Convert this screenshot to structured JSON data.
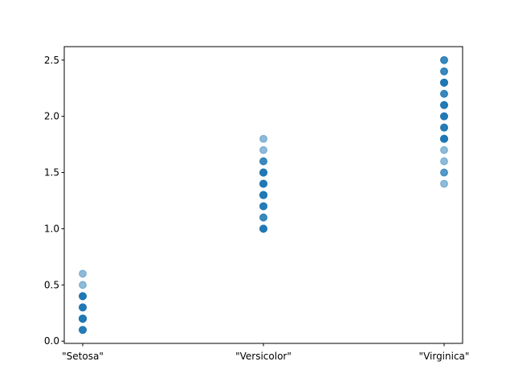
{
  "chart_data": {
    "type": "scatter",
    "title": "",
    "xlabel": "",
    "ylabel": "",
    "categories": [
      "\"Setosa\"",
      "\"Versicolor\"",
      "\"Virginica\""
    ],
    "ylim": [
      -0.02,
      2.62
    ],
    "y_ticks": [
      "0.0",
      "0.5",
      "1.0",
      "1.5",
      "2.0",
      "2.5"
    ],
    "marker_color": "#1f77b4",
    "marker_alpha": 0.5,
    "grid": false,
    "legend": "none",
    "points": [
      {
        "category": "\"Setosa\"",
        "values": [
          0.2,
          0.2,
          0.2,
          0.2,
          0.2,
          0.4,
          0.3,
          0.2,
          0.2,
          0.1,
          0.2,
          0.2,
          0.1,
          0.1,
          0.2,
          0.4,
          0.4,
          0.3,
          0.3,
          0.3,
          0.2,
          0.4,
          0.2,
          0.5,
          0.2,
          0.2,
          0.4,
          0.2,
          0.2,
          0.2,
          0.2,
          0.4,
          0.1,
          0.2,
          0.2,
          0.2,
          0.2,
          0.1,
          0.2,
          0.2,
          0.3,
          0.3,
          0.2,
          0.6,
          0.4,
          0.3,
          0.2,
          0.2,
          0.2,
          0.2
        ]
      },
      {
        "category": "\"Versicolor\"",
        "values": [
          1.4,
          1.5,
          1.5,
          1.3,
          1.5,
          1.3,
          1.6,
          1.0,
          1.3,
          1.4,
          1.0,
          1.5,
          1.0,
          1.4,
          1.3,
          1.4,
          1.5,
          1.0,
          1.5,
          1.1,
          1.8,
          1.3,
          1.5,
          1.2,
          1.3,
          1.4,
          1.4,
          1.7,
          1.5,
          1.0,
          1.1,
          1.0,
          1.2,
          1.6,
          1.5,
          1.6,
          1.5,
          1.3,
          1.3,
          1.3,
          1.2,
          1.4,
          1.2,
          1.0,
          1.3,
          1.2,
          1.3,
          1.3,
          1.1,
          1.3
        ]
      },
      {
        "category": "\"Virginica\"",
        "values": [
          2.5,
          1.9,
          2.1,
          1.8,
          2.2,
          2.1,
          1.7,
          1.8,
          1.8,
          2.5,
          2.0,
          1.9,
          2.1,
          2.0,
          2.4,
          2.3,
          1.8,
          2.2,
          2.3,
          1.5,
          2.3,
          2.0,
          2.0,
          1.8,
          2.1,
          1.8,
          1.8,
          1.8,
          2.1,
          1.6,
          1.9,
          2.0,
          2.2,
          1.5,
          1.4,
          2.3,
          2.4,
          1.8,
          1.8,
          2.1,
          2.4,
          2.3,
          1.9,
          2.3,
          2.5,
          2.3,
          1.9,
          2.0,
          2.3,
          1.8
        ]
      }
    ]
  }
}
